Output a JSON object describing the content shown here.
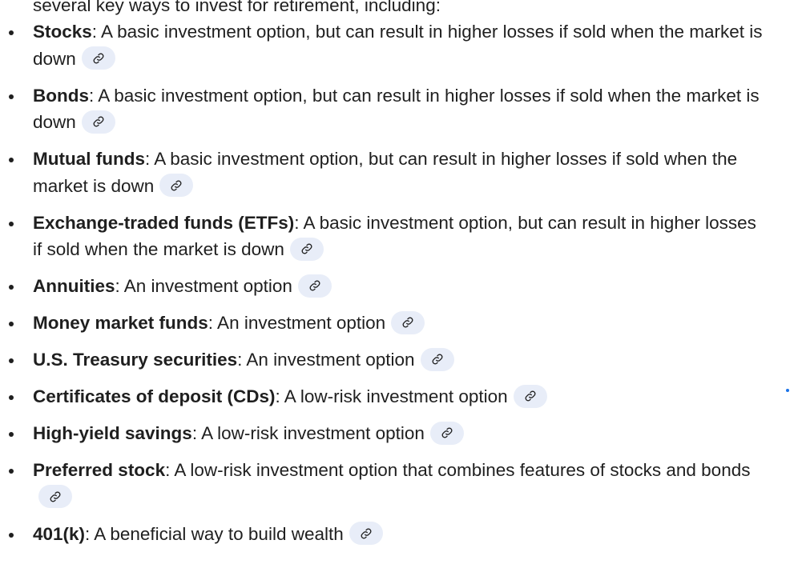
{
  "header_fragment": "several key ways to invest for retirement, including:",
  "items": [
    {
      "term": "Stocks",
      "description": ": A basic investment option, but can result in higher losses if sold when the market is down"
    },
    {
      "term": "Bonds",
      "description": ": A basic investment option, but can result in higher losses if sold when the market is down"
    },
    {
      "term": "Mutual funds",
      "description": ": A basic investment option, but can result in higher losses if sold when the market is down"
    },
    {
      "term": "Exchange-traded funds (ETFs)",
      "description": ": A basic investment option, but can result in higher losses if sold when the market is down"
    },
    {
      "term": "Annuities",
      "description": ": An investment option"
    },
    {
      "term": "Money market funds",
      "description": ": An investment option"
    },
    {
      "term": "U.S. Treasury securities",
      "description": ": An investment option"
    },
    {
      "term": "Certificates of deposit (CDs)",
      "description": ": A low-risk investment option"
    },
    {
      "term": "High-yield savings",
      "description": ": A low-risk investment option"
    },
    {
      "term": "Preferred stock",
      "description": ": A low-risk investment option that combines features of stocks and bonds"
    },
    {
      "term": "401(k)",
      "description": ": A beneficial way to build wealth"
    }
  ],
  "icons": {
    "citation": "link-icon"
  },
  "colors": {
    "text": "#1f1f1f",
    "chip_background": "#e8edf8",
    "accent": "#1a73e8"
  }
}
